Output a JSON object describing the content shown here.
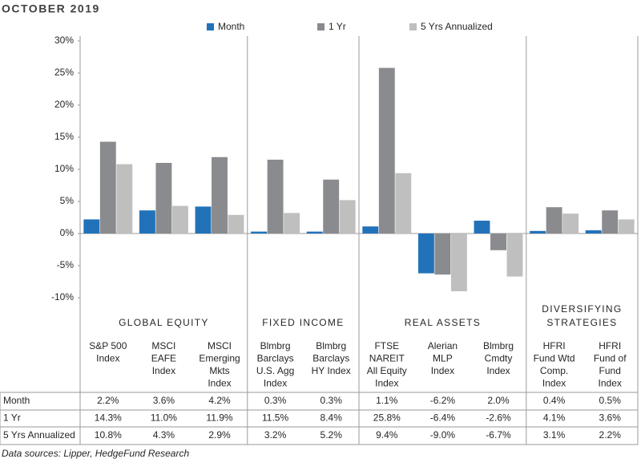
{
  "chart_data": {
    "type": "bar",
    "title": "OCTOBER 2019",
    "source": "Data sources: Lipper, HedgeFund Research",
    "groups": [
      {
        "label": [
          "GLOBAL EQUITY"
        ],
        "categories": [
          [
            "S&P 500",
            "Index"
          ],
          [
            "MSCI",
            "EAFE",
            "Index"
          ],
          [
            "MSCI",
            "Emerging",
            "Mkts",
            "Index"
          ]
        ]
      },
      {
        "label": [
          "FIXED INCOME"
        ],
        "categories": [
          [
            "Blmbrg",
            "Barclays",
            "U.S. Agg",
            "Index"
          ],
          [
            "Blmbrg",
            "Barclays",
            "HY Index"
          ]
        ]
      },
      {
        "label": [
          "REAL ASSETS"
        ],
        "categories": [
          [
            "FTSE",
            "NAREIT",
            "All Equity",
            "Index"
          ],
          [
            "Alerian",
            "MLP",
            "Index"
          ],
          [
            "Blmbrg",
            "Cmdty",
            "Index"
          ]
        ]
      },
      {
        "label": [
          "DIVERSIFYING",
          "STRATEGIES"
        ],
        "categories": [
          [
            "HFRI",
            "Fund Wtd",
            "Comp.",
            "Index"
          ],
          [
            "HFRI",
            "Fund of",
            "Fund",
            "Index"
          ]
        ]
      }
    ],
    "series": [
      {
        "name": "Month",
        "color": "#2272b9",
        "values": [
          2.2,
          3.6,
          4.2,
          0.3,
          0.3,
          1.1,
          -6.2,
          2.0,
          0.4,
          0.5
        ],
        "value_labels": [
          "2.2%",
          "3.6%",
          "4.2%",
          "0.3%",
          "0.3%",
          "1.1%",
          "-6.2%",
          "2.0%",
          "0.4%",
          "0.5%"
        ]
      },
      {
        "name": "1 Yr",
        "color": "#8a8b8e",
        "values": [
          14.3,
          11.0,
          11.9,
          11.5,
          8.4,
          25.8,
          -6.4,
          -2.6,
          4.1,
          3.6
        ],
        "value_labels": [
          "14.3%",
          "11.0%",
          "11.9%",
          "11.5%",
          "8.4%",
          "25.8%",
          "-6.4%",
          "-2.6%",
          "4.1%",
          "3.6%"
        ]
      },
      {
        "name": "5 Yrs Annualized",
        "color": "#bfbfbf",
        "values": [
          10.8,
          4.3,
          2.9,
          3.2,
          5.2,
          9.4,
          -9.0,
          -6.7,
          3.1,
          2.2
        ],
        "value_labels": [
          "10.8%",
          "4.3%",
          "2.9%",
          "3.2%",
          "5.2%",
          "9.4%",
          "-9.0%",
          "-6.7%",
          "3.1%",
          "2.2%"
        ]
      }
    ],
    "ylim": [
      -10,
      30
    ],
    "yticks": [
      {
        "value": -10,
        "label": "-10%"
      },
      {
        "value": -5,
        "label": "-5%"
      },
      {
        "value": 0,
        "label": "0%"
      },
      {
        "value": 5,
        "label": "5%"
      },
      {
        "value": 10,
        "label": "10%"
      },
      {
        "value": 15,
        "label": "15%"
      },
      {
        "value": 20,
        "label": "20%"
      },
      {
        "value": 25,
        "label": "25%"
      },
      {
        "value": 30,
        "label": "30%"
      }
    ],
    "grid": false
  }
}
